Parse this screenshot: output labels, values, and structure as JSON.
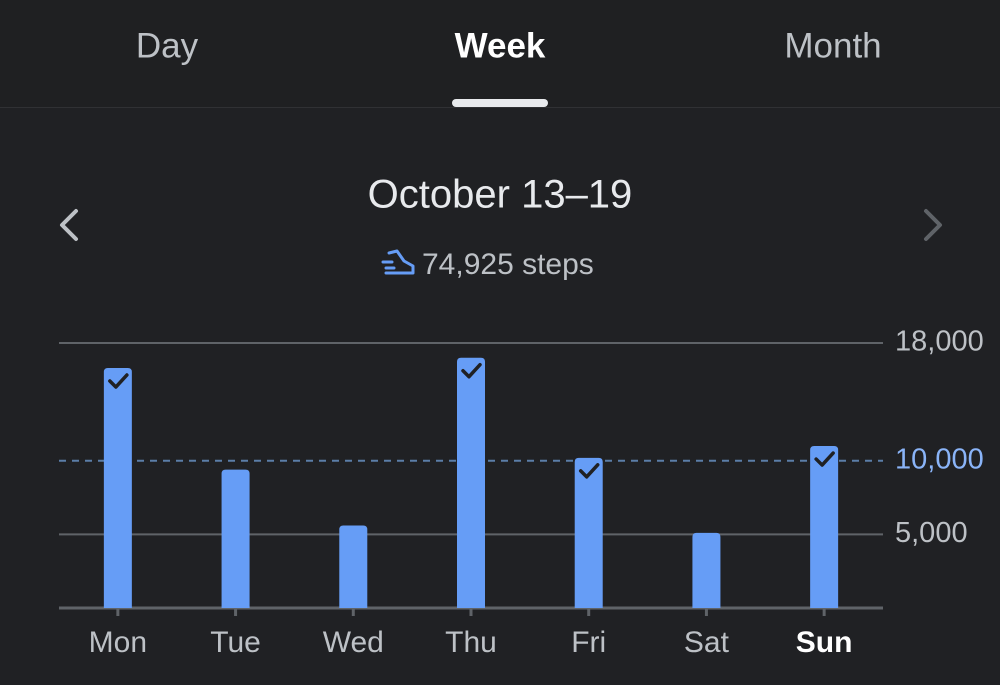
{
  "tabs": [
    "Day",
    "Week",
    "Month"
  ],
  "selected_tab": 1,
  "chart_data": {
    "type": "bar",
    "title": "October 13–19",
    "subtitle": "74,925 steps",
    "categories": [
      "Mon",
      "Tue",
      "Wed",
      "Thu",
      "Fri",
      "Sat",
      "Sun"
    ],
    "values": [
      16300,
      9400,
      5600,
      17000,
      10200,
      5100,
      11000
    ],
    "color": "#669df6",
    "ylim": [
      0,
      18000
    ],
    "yticks": [
      {
        "value": 5000,
        "label": "5,000"
      },
      {
        "value": 10000,
        "label": "10,000"
      },
      {
        "value": 18000,
        "label": "18,000"
      }
    ],
    "goal": 10000,
    "selected_index": 6,
    "grid": true
  }
}
